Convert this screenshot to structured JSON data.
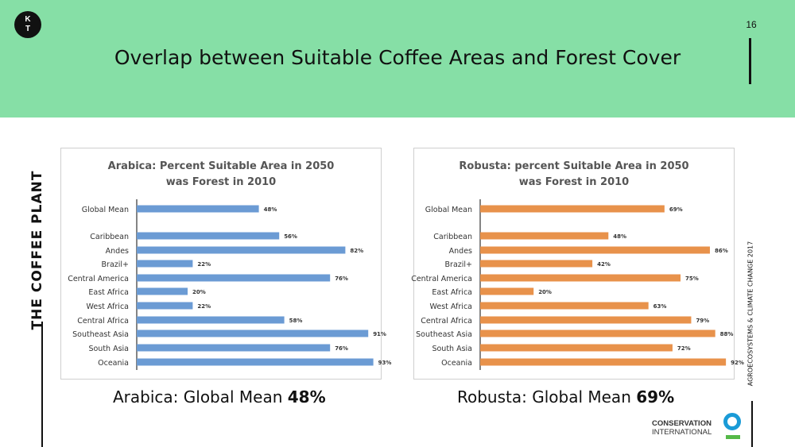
{
  "logo": {
    "line1": "K",
    "line2": "T"
  },
  "page_number": "16",
  "title": "Overlap between Suitable Coffee Areas and Forest Cover",
  "side_label_left": "THE COFFEE PLANT",
  "side_label_right": "AGROECOSYSTEMS  & CLIMATE CHANGE 2017",
  "captions": {
    "arabica": {
      "prefix": "Arabica: Global Mean ",
      "value": "48%"
    },
    "robusta": {
      "prefix": "Robusta: Global Mean ",
      "value": "69%"
    }
  },
  "org_logo": {
    "line1": "CONSERVATION",
    "line2": "INTERNATIONAL"
  },
  "colors": {
    "header_bg": "#86dfa6",
    "arabica_bar": "#6b9bd4",
    "robusta_bar": "#e8924b"
  },
  "chart_data": [
    {
      "type": "bar",
      "orientation": "horizontal",
      "title": "Arabica: Percent Suitable Area in 2050 was Forest in 2010",
      "title_lines": [
        "Arabica: Percent Suitable Area in 2050",
        "was Forest in 2010"
      ],
      "categories": [
        "Global Mean",
        "Caribbean",
        "Andes",
        "Brazil+",
        "Central America",
        "East Africa",
        "West Africa",
        "Central Africa",
        "Southeast Asia",
        "South Asia",
        "Oceania"
      ],
      "values": [
        48,
        56,
        82,
        22,
        76,
        20,
        22,
        58,
        91,
        76,
        93
      ],
      "value_labels": [
        "48%",
        "56%",
        "82%",
        "22%",
        "76%",
        "20%",
        "22%",
        "58%",
        "91%",
        "76%",
        "93%"
      ],
      "xlim": [
        0,
        100
      ],
      "grid": false,
      "color": "#6b9bd4"
    },
    {
      "type": "bar",
      "orientation": "horizontal",
      "title": "Robusta: percent Suitable Area in 2050 was Forest in 2010",
      "title_lines": [
        "Robusta: percent Suitable Area in 2050",
        "was Forest in 2010"
      ],
      "categories": [
        "Global Mean",
        "Caribbean",
        "Andes",
        "Brazil+",
        "Central America",
        "East Africa",
        "West Africa",
        "Central Africa",
        "Southeast Asia",
        "South Asia",
        "Oceania"
      ],
      "values": [
        69,
        48,
        86,
        42,
        75,
        20,
        63,
        79,
        88,
        72,
        92
      ],
      "value_labels": [
        "69%",
        "48%",
        "86%",
        "42%",
        "75%",
        "20%",
        "63%",
        "79%",
        "88%",
        "72%",
        "92%"
      ],
      "xlim": [
        0,
        100
      ],
      "grid": false,
      "color": "#e8924b"
    }
  ]
}
